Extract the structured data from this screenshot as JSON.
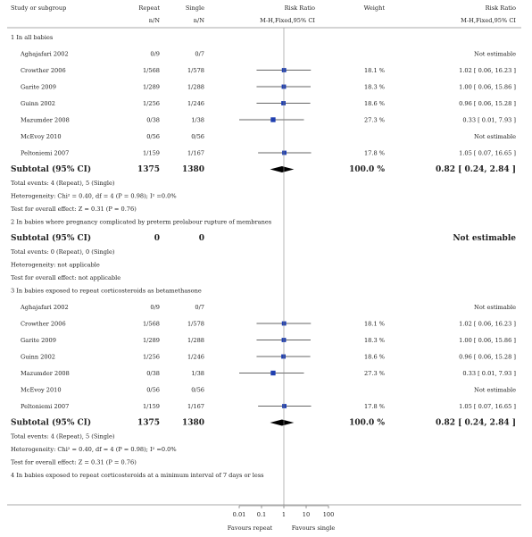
{
  "header": {
    "study_col": "Study or subgroup",
    "g1": "Repeat",
    "g2": "Single",
    "g1_sub": "n/N",
    "g2_sub": "n/N",
    "rr_col": "Risk Ratio",
    "rr_sub": "M-H,Fixed,95% CI",
    "weight_col": "Weight",
    "rr_col2": "Risk Ratio",
    "rr_sub2": "M-H,Fixed,95% CI"
  },
  "chart_data": {
    "type": "forest",
    "scale": "log",
    "xlim": [
      0.01,
      100
    ],
    "ticks": [
      "0.01",
      "0.1",
      "1",
      "10",
      "100"
    ],
    "favours_left": "Favours repeat",
    "favours_right": "Favours single",
    "groups": [
      {
        "title": "1 In all babies",
        "studies": [
          {
            "name": "Aghajafari 2002",
            "e1": "0/9",
            "e2": "0/7",
            "weight": "",
            "ci_text": "Not estimable"
          },
          {
            "name": "Crowther 2006",
            "e1": "1/568",
            "e2": "1/578",
            "rr": 1.02,
            "lo": 0.06,
            "hi": 16.23,
            "weight": "18.1 %",
            "ci_text": "1.02 [ 0.06, 16.23 ]"
          },
          {
            "name": "Garite 2009",
            "e1": "1/289",
            "e2": "1/288",
            "rr": 1.0,
            "lo": 0.06,
            "hi": 15.86,
            "weight": "18.3 %",
            "ci_text": "1.00 [ 0.06, 15.86 ]"
          },
          {
            "name": "Guinn 2002",
            "e1": "1/256",
            "e2": "1/246",
            "rr": 0.96,
            "lo": 0.06,
            "hi": 15.28,
            "weight": "18.6 %",
            "ci_text": "0.96 [ 0.06, 15.28 ]"
          },
          {
            "name": "Mazumder 2008",
            "e1": "0/38",
            "e2": "1/38",
            "rr": 0.33,
            "lo": 0.01,
            "hi": 7.93,
            "weight": "27.3 %",
            "ci_text": "0.33 [ 0.01, 7.93 ]"
          },
          {
            "name": "McEvoy 2010",
            "e1": "0/56",
            "e2": "0/56",
            "weight": "",
            "ci_text": "Not estimable"
          },
          {
            "name": "Peltoniemi 2007",
            "e1": "1/159",
            "e2": "1/167",
            "rr": 1.05,
            "lo": 0.07,
            "hi": 16.65,
            "weight": "17.8 %",
            "ci_text": "1.05 [ 0.07, 16.65 ]"
          }
        ],
        "subtotal": {
          "label": "Subtotal (95% CI)",
          "n1": "1375",
          "n2": "1380",
          "rr": 0.82,
          "lo": 0.24,
          "hi": 2.84,
          "weight": "100.0 %",
          "ci_text": "0.82 [ 0.24, 2.84 ]"
        },
        "notes": [
          "Total events: 4 (Repeat), 5 (Single)",
          "Heterogeneity: Chi² = 0.40, df = 4 (P = 0.98); I² =0.0%",
          "Test for overall effect: Z = 0.31 (P = 0.76)"
        ]
      },
      {
        "title": "2 In babies where pregnancy complicated by preterm prelabour rupture of membranes",
        "studies": [],
        "subtotal": {
          "label": "Subtotal (95% CI)",
          "n1": "0",
          "n2": "0",
          "weight": "",
          "ci_text": "Not estimable"
        },
        "notes": [
          "Total events: 0 (Repeat), 0 (Single)",
          "Heterogeneity: not applicable",
          "Test for overall effect: not applicable"
        ]
      },
      {
        "title": "3 In babies exposed to repeat corticosteroids as betamethasone",
        "studies": [
          {
            "name": "Aghajafari 2002",
            "e1": "0/9",
            "e2": "0/7",
            "weight": "",
            "ci_text": "Not estimable"
          },
          {
            "name": "Crowther 2006",
            "e1": "1/568",
            "e2": "1/578",
            "rr": 1.02,
            "lo": 0.06,
            "hi": 16.23,
            "weight": "18.1 %",
            "ci_text": "1.02 [ 0.06, 16.23 ]"
          },
          {
            "name": "Garite 2009",
            "e1": "1/289",
            "e2": "1/288",
            "rr": 1.0,
            "lo": 0.06,
            "hi": 15.86,
            "weight": "18.3 %",
            "ci_text": "1.00 [ 0.06, 15.86 ]"
          },
          {
            "name": "Guinn 2002",
            "e1": "1/256",
            "e2": "1/246",
            "rr": 0.96,
            "lo": 0.06,
            "hi": 15.28,
            "weight": "18.6 %",
            "ci_text": "0.96 [ 0.06, 15.28 ]"
          },
          {
            "name": "Mazumder 2008",
            "e1": "0/38",
            "e2": "1/38",
            "rr": 0.33,
            "lo": 0.01,
            "hi": 7.93,
            "weight": "27.3 %",
            "ci_text": "0.33 [ 0.01, 7.93 ]"
          },
          {
            "name": "McEvoy 2010",
            "e1": "0/56",
            "e2": "0/56",
            "weight": "",
            "ci_text": "Not estimable"
          },
          {
            "name": "Peltoniemi 2007",
            "e1": "1/159",
            "e2": "1/167",
            "rr": 1.05,
            "lo": 0.07,
            "hi": 16.65,
            "weight": "17.8 %",
            "ci_text": "1.05 [ 0.07, 16.65 ]"
          }
        ],
        "subtotal": {
          "label": "Subtotal (95% CI)",
          "n1": "1375",
          "n2": "1380",
          "rr": 0.82,
          "lo": 0.24,
          "hi": 2.84,
          "weight": "100.0 %",
          "ci_text": "0.82 [ 0.24, 2.84 ]"
        },
        "notes": [
          "Total events: 4 (Repeat), 5 (Single)",
          "Heterogeneity: Chi² = 0.40, df = 4 (P = 0.98); I² =0.0%",
          "Test for overall effect: Z = 0.31 (P = 0.76)"
        ]
      },
      {
        "title": "4 In babies exposed to repeat corticosteroids at a minimum interval of 7 days or less",
        "studies": [],
        "notes": []
      }
    ]
  }
}
